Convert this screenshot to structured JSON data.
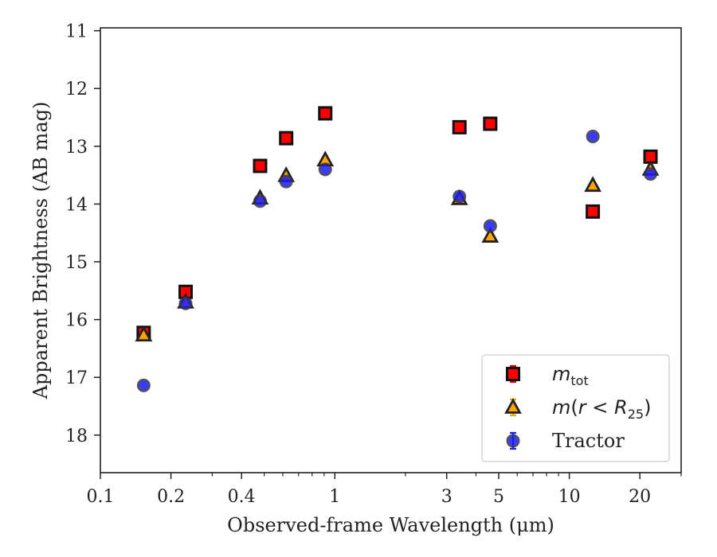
{
  "chart_data": {
    "type": "scatter",
    "title": "",
    "xlabel": "Observed-frame Wavelength (μm)",
    "ylabel": "Apparent Brightness (AB mag)",
    "xscale": "log",
    "xlim": [
      0.1,
      30
    ],
    "ylim": [
      18.65,
      10.95
    ],
    "y_inverted": true,
    "xticks": [
      {
        "value": 0.1,
        "label": "0.1"
      },
      {
        "value": 0.2,
        "label": "0.2"
      },
      {
        "value": 0.4,
        "label": "0.4"
      },
      {
        "value": 1,
        "label": "1"
      },
      {
        "value": 3,
        "label": "3"
      },
      {
        "value": 5,
        "label": "5"
      },
      {
        "value": 10,
        "label": "10"
      },
      {
        "value": 20,
        "label": "20"
      }
    ],
    "yticks": [
      {
        "value": 11,
        "label": "11"
      },
      {
        "value": 12,
        "label": "12"
      },
      {
        "value": 13,
        "label": "13"
      },
      {
        "value": 14,
        "label": "14"
      },
      {
        "value": 15,
        "label": "15"
      },
      {
        "value": 16,
        "label": "16"
      },
      {
        "value": 17,
        "label": "17"
      },
      {
        "value": 18,
        "label": "18"
      }
    ],
    "grid": false,
    "legend_position": "bottom-right",
    "series": [
      {
        "name": "m_tot",
        "legend_main": "m",
        "legend_sub": "tot",
        "marker": "square",
        "fill": "#ff0000",
        "errorbar_color": "#d40000",
        "x": [
          0.153,
          0.231,
          0.48,
          0.62,
          0.91,
          3.4,
          4.6,
          12.6,
          22.2
        ],
        "y": [
          16.23,
          15.52,
          13.34,
          12.86,
          12.43,
          12.67,
          12.61,
          14.13,
          13.18
        ]
      },
      {
        "name": "m(r < R25)",
        "legend_main": "m(r < R",
        "legend_sub": "25",
        "legend_tail": ")",
        "marker": "triangle",
        "fill": "#ffa500",
        "errorbar_color": "#e6a800",
        "x": [
          0.153,
          0.231,
          0.48,
          0.62,
          0.91,
          3.4,
          4.6,
          12.6,
          22.2
        ],
        "y": [
          16.27,
          15.7,
          13.9,
          13.51,
          13.24,
          13.91,
          14.56,
          13.68,
          13.4
        ]
      },
      {
        "name": "Tractor",
        "marker": "circle",
        "fill": "#1a1aff",
        "errorbar_color": "#1a1aff",
        "x": [
          0.153,
          0.231,
          0.48,
          0.62,
          0.91,
          3.4,
          4.6,
          12.6,
          22.2
        ],
        "y": [
          17.14,
          15.72,
          13.95,
          13.61,
          13.4,
          13.87,
          14.38,
          12.83,
          13.48
        ]
      }
    ]
  }
}
